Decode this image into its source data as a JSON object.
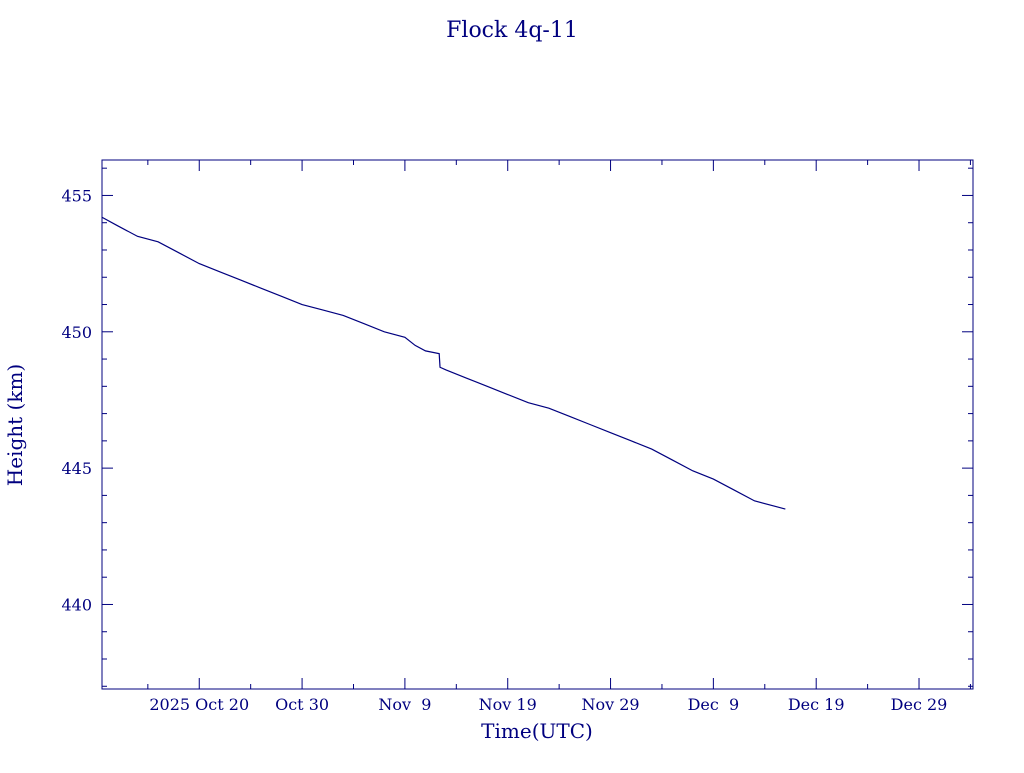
{
  "chart_data": {
    "type": "line",
    "title": "Flock 4q-11",
    "xlabel": "Time(UTC)",
    "ylabel": "Height (km)",
    "color": "#00007f",
    "x_ticks": [
      {
        "date": "2025-10-20",
        "label": "2025 Oct 20"
      },
      {
        "date": "2025-10-30",
        "label": "Oct 30"
      },
      {
        "date": "2025-11-09",
        "label": "Nov  9"
      },
      {
        "date": "2025-11-19",
        "label": "Nov 19"
      },
      {
        "date": "2025-11-29",
        "label": "Nov 29"
      },
      {
        "date": "2025-12-09",
        "label": "Dec  9"
      },
      {
        "date": "2025-12-19",
        "label": "Dec 19"
      },
      {
        "date": "2025-12-29",
        "label": "Dec 29"
      }
    ],
    "xlim": [
      "2025-10-10 13:00",
      "2026-01-03 06:00"
    ],
    "y_ticks": [
      440,
      445,
      450,
      455
    ],
    "ylim": [
      436.9,
      456.3
    ],
    "grid": false,
    "series": [
      {
        "x": [
          "2025-10-10 13:00",
          "2025-10-12 00:00",
          "2025-10-14 00:00",
          "2025-10-16 00:00",
          "2025-10-18 00:00",
          "2025-10-20 00:00",
          "2025-10-22 00:00",
          "2025-10-24 00:00",
          "2025-10-26 00:00",
          "2025-10-28 00:00",
          "2025-10-30 00:00",
          "2025-11-01 00:00",
          "2025-11-03 00:00",
          "2025-11-05 00:00",
          "2025-11-07 00:00",
          "2025-11-09 00:00",
          "2025-11-10 00:00",
          "2025-11-11 00:00",
          "2025-11-12 08:00",
          "2025-11-12 10:00",
          "2025-11-13 00:00",
          "2025-11-15 00:00",
          "2025-11-17 00:00",
          "2025-11-19 00:00",
          "2025-11-21 00:00",
          "2025-11-23 00:00",
          "2025-11-25 00:00",
          "2025-11-27 00:00",
          "2025-11-29 00:00",
          "2025-12-01 00:00",
          "2025-12-03 00:00",
          "2025-12-05 00:00",
          "2025-12-07 00:00",
          "2025-12-09 00:00",
          "2025-12-11 00:00",
          "2025-12-13 00:00",
          "2025-12-15 00:00",
          "2025-12-16 00:00"
        ],
        "y": [
          454.2,
          453.9,
          453.5,
          453.3,
          452.9,
          452.5,
          452.2,
          451.9,
          451.6,
          451.3,
          451.0,
          450.8,
          450.6,
          450.3,
          450.0,
          449.8,
          449.5,
          449.3,
          449.2,
          448.7,
          448.6,
          448.3,
          448.0,
          447.7,
          447.4,
          447.2,
          446.9,
          446.6,
          446.3,
          446.0,
          445.7,
          445.3,
          444.9,
          444.6,
          444.2,
          443.8,
          443.6,
          443.5
        ]
      }
    ]
  }
}
